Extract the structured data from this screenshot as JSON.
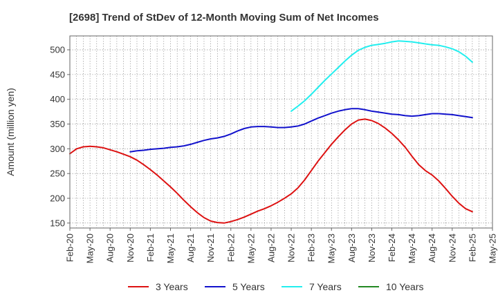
{
  "chart_data": {
    "type": "line",
    "title": "[2698]  Trend of StDev of 12-Month Moving Sum of Net Incomes",
    "ylabel": "Amount (million yen)",
    "xlabel": "",
    "ylim": [
      140,
      528
    ],
    "yticks": [
      150,
      200,
      250,
      300,
      350,
      400,
      450,
      500
    ],
    "xlim": [
      "2020-02",
      "2025-05"
    ],
    "xticks": [
      "Feb-20",
      "May-20",
      "Aug-20",
      "Nov-20",
      "Feb-21",
      "May-21",
      "Aug-21",
      "Nov-21",
      "Feb-22",
      "May-22",
      "Aug-22",
      "Nov-22",
      "Feb-23",
      "May-23",
      "Aug-23",
      "Nov-23",
      "Feb-24",
      "May-24",
      "Aug-24",
      "Nov-24",
      "Feb-25",
      "May-25"
    ],
    "grid": true,
    "legend_position": "bottom",
    "series": [
      {
        "name": "3 Years",
        "color": "#dd1111",
        "x": [
          "2020-02",
          "2020-03",
          "2020-04",
          "2020-05",
          "2020-06",
          "2020-07",
          "2020-08",
          "2020-09",
          "2020-10",
          "2020-11",
          "2020-12",
          "2021-01",
          "2021-02",
          "2021-03",
          "2021-04",
          "2021-05",
          "2021-06",
          "2021-07",
          "2021-08",
          "2021-09",
          "2021-10",
          "2021-11",
          "2021-12",
          "2022-01",
          "2022-02",
          "2022-03",
          "2022-04",
          "2022-05",
          "2022-06",
          "2022-07",
          "2022-08",
          "2022-09",
          "2022-10",
          "2022-11",
          "2022-12",
          "2023-01",
          "2023-02",
          "2023-03",
          "2023-04",
          "2023-05",
          "2023-06",
          "2023-07",
          "2023-08",
          "2023-09",
          "2023-10",
          "2023-11",
          "2023-12",
          "2024-01",
          "2024-02",
          "2024-03",
          "2024-04",
          "2024-05",
          "2024-06",
          "2024-07",
          "2024-08",
          "2024-09",
          "2024-10",
          "2024-11",
          "2024-12",
          "2025-01",
          "2025-02"
        ],
        "values": [
          290,
          300,
          304,
          305,
          304,
          302,
          298,
          294,
          289,
          284,
          277,
          268,
          258,
          247,
          235,
          223,
          210,
          196,
          183,
          171,
          161,
          154,
          151,
          150,
          153,
          157,
          162,
          168,
          174,
          179,
          185,
          192,
          200,
          209,
          221,
          237,
          256,
          275,
          292,
          309,
          324,
          338,
          350,
          358,
          360,
          357,
          351,
          342,
          331,
          318,
          303,
          285,
          268,
          256,
          247,
          235,
          220,
          204,
          190,
          179,
          173
        ]
      },
      {
        "name": "5 Years",
        "color": "#1111cc",
        "x": [
          "2020-11",
          "2020-12",
          "2021-01",
          "2021-02",
          "2021-03",
          "2021-04",
          "2021-05",
          "2021-06",
          "2021-07",
          "2021-08",
          "2021-09",
          "2021-10",
          "2021-11",
          "2021-12",
          "2022-01",
          "2022-02",
          "2022-03",
          "2022-04",
          "2022-05",
          "2022-06",
          "2022-07",
          "2022-08",
          "2022-09",
          "2022-10",
          "2022-11",
          "2022-12",
          "2023-01",
          "2023-02",
          "2023-03",
          "2023-04",
          "2023-05",
          "2023-06",
          "2023-07",
          "2023-08",
          "2023-09",
          "2023-10",
          "2023-11",
          "2023-12",
          "2024-01",
          "2024-02",
          "2024-03",
          "2024-04",
          "2024-05",
          "2024-06",
          "2024-07",
          "2024-08",
          "2024-09",
          "2024-10",
          "2024-11",
          "2024-12",
          "2025-01",
          "2025-02"
        ],
        "values": [
          294,
          296,
          297,
          299,
          300,
          301,
          303,
          304,
          306,
          309,
          313,
          317,
          320,
          322,
          325,
          330,
          336,
          341,
          344,
          345,
          345,
          344,
          343,
          343,
          344,
          346,
          350,
          356,
          362,
          367,
          372,
          376,
          379,
          381,
          381,
          379,
          376,
          374,
          372,
          370,
          369,
          367,
          366,
          367,
          369,
          371,
          371,
          370,
          369,
          367,
          365,
          363
        ]
      },
      {
        "name": "7 Years",
        "color": "#22eeee",
        "x": [
          "2022-11",
          "2022-12",
          "2023-01",
          "2023-02",
          "2023-03",
          "2023-04",
          "2023-05",
          "2023-06",
          "2023-07",
          "2023-08",
          "2023-09",
          "2023-10",
          "2023-11",
          "2023-12",
          "2024-01",
          "2024-02",
          "2024-03",
          "2024-04",
          "2024-05",
          "2024-06",
          "2024-07",
          "2024-08",
          "2024-09",
          "2024-10",
          "2024-11",
          "2024-12",
          "2025-01",
          "2025-02"
        ],
        "values": [
          376,
          386,
          397,
          410,
          424,
          438,
          451,
          464,
          477,
          489,
          499,
          505,
          509,
          511,
          513,
          516,
          518,
          517,
          516,
          514,
          512,
          510,
          509,
          506,
          502,
          496,
          487,
          475
        ]
      },
      {
        "name": "10 Years",
        "color": "#228822",
        "x": [],
        "values": []
      }
    ]
  }
}
